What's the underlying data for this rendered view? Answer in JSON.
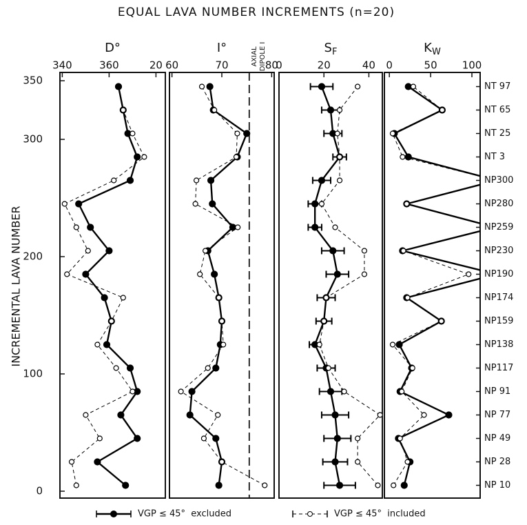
{
  "chart_data": {
    "type": "profile",
    "title": "EQUAL LAVA NUMBER INCREMENTS (n=20)",
    "ylabel": "INCREMENTAL LAVA NUMBER",
    "ylim": [
      0,
      350
    ],
    "yticks": [
      0,
      100,
      200,
      300,
      350
    ],
    "y": [
      5,
      25,
      45,
      65,
      85,
      105,
      125,
      145,
      165,
      185,
      205,
      225,
      245,
      265,
      285,
      305,
      325,
      345
    ],
    "site_labels": [
      "NP 10",
      "NP 28",
      "NP 49",
      "NP 77",
      "NP 91",
      "NP117",
      "NP138",
      "NP159",
      "NP174",
      "NP190",
      "NP230",
      "NP259",
      "NP280",
      "NP300",
      "NT 3",
      "NT 25",
      "NT 65",
      "NT 97"
    ],
    "legend": [
      {
        "name": "VGP ≤ 45°  excluded",
        "color": "#000000",
        "style": "solid",
        "marker": "filled"
      },
      {
        "name": "VGP ≤ 45°  included",
        "color": "#000000",
        "style": "dashed",
        "marker": "open"
      }
    ],
    "panels": [
      {
        "type": "line",
        "title": "D°",
        "xlim": [
          339,
          384
        ],
        "xticks": [
          340,
          360,
          {
            "value": 380,
            "label": "20"
          }
        ],
        "series": [
          {
            "values": [
              367,
              355,
              372,
              365,
              372,
              369,
              359,
              361,
              358,
              350,
              360,
              352,
              347,
              369,
              372,
              368,
              366,
              364
            ]
          },
          {
            "values": [
              346,
              344,
              356,
              350,
              370,
              363,
              355,
              361,
              366,
              342,
              351,
              346,
              341,
              362,
              375,
              370,
              366,
              null
            ]
          }
        ]
      },
      {
        "type": "line",
        "title": "I°",
        "xlim": [
          59.5,
          80.5
        ],
        "xticks": [
          60,
          70,
          80
        ],
        "reference_line": {
          "value": 75.5,
          "label_lines": [
            "AXIAL",
            "DIPOLE I"
          ]
        },
        "series": [
          {
            "values": [
              69.4,
              70,
              68.8,
              63.6,
              64,
              68.8,
              69.7,
              70,
              69.4,
              68.5,
              67.2,
              72.2,
              68.1,
              67.8,
              73.1,
              75,
              68.3,
              67.6
            ]
          },
          {
            "values": [
              78.6,
              70,
              66.4,
              69.2,
              61.8,
              67.2,
              70.3,
              70,
              69.4,
              65.6,
              66.7,
              73.2,
              64.7,
              64.9,
              72.9,
              73.1,
              68.5,
              66
            ]
          }
        ]
      },
      {
        "type": "line",
        "title": "S",
        "title_subscript": "F",
        "xlim": [
          0,
          46
        ],
        "xticks": [
          0,
          20,
          40
        ],
        "series": [
          {
            "values": [
              27,
              25,
              26,
              25,
              23,
              21,
              16,
              20,
              21,
              26,
              24,
              16,
              16,
              19,
              27,
              24,
              23,
              19
            ],
            "errors": [
              7,
              5.5,
              6,
              6,
              5,
              4,
              2.5,
              3.5,
              4,
              5,
              5,
              3,
              3,
              4,
              3,
              4,
              4,
              5
            ]
          },
          {
            "values": [
              44,
              35,
              35,
              45,
              29,
              22,
              18,
              20,
              21,
              38,
              38,
              25,
              19,
              27,
              27,
              26,
              27,
              35
            ]
          }
        ]
      },
      {
        "type": "line",
        "title": "K",
        "title_subscript": "W",
        "xlim": [
          -6,
          110
        ],
        "xticks": [
          0,
          50,
          100
        ],
        "series": [
          {
            "values": [
              18,
              25,
              11,
              72,
              13,
              27,
              12,
              63,
              21,
              130,
              16,
              128,
              21,
              130,
              23,
              6,
              64,
              23
            ]
          },
          {
            "values": [
              5,
              22,
              13,
              42,
              15,
              28,
              4,
              63,
              22,
              96,
              17,
              128,
              21,
              130,
              16,
              4,
              64,
              29
            ]
          }
        ]
      }
    ]
  }
}
